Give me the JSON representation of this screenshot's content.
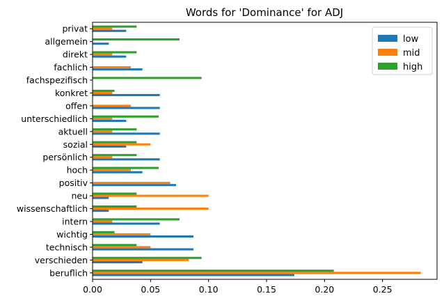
{
  "chart_data": {
    "type": "bar",
    "orientation": "horizontal",
    "title": "Words for 'Dominance' for ADJ",
    "xlabel": "",
    "ylabel": "",
    "xlim": [
      0,
      0.297
    ],
    "xticks": [
      "0.00",
      "0.05",
      "0.10",
      "0.15",
      "0.20",
      "0.25"
    ],
    "xtick_values": [
      0,
      0.05,
      0.1,
      0.15,
      0.2,
      0.25
    ],
    "legend_position": "top-right",
    "grid": false,
    "categories": [
      "beruflich",
      "verschieden",
      "technisch",
      "wichtig",
      "intern",
      "wissenschaftlich",
      "neu",
      "positiv",
      "hoch",
      "persönlich",
      "sozial",
      "aktuell",
      "unterschiedlich",
      "offen",
      "konkret",
      "fachspezifisch",
      "fachlich",
      "direkt",
      "allgemein",
      "privat"
    ],
    "series": [
      {
        "name": "low",
        "color": "#1f77b4",
        "values": [
          0.174,
          0.043,
          0.087,
          0.087,
          0.058,
          0.014,
          0.014,
          0.072,
          0.043,
          0.058,
          0.029,
          0.058,
          0.029,
          0.058,
          0.058,
          0.0,
          0.043,
          0.029,
          0.014,
          0.029
        ]
      },
      {
        "name": "mid",
        "color": "#ff7f0e",
        "values": [
          0.283,
          0.083,
          0.05,
          0.05,
          0.017,
          0.1,
          0.1,
          0.067,
          0.033,
          0.017,
          0.05,
          0.017,
          0.017,
          0.033,
          0.017,
          0.0,
          0.033,
          0.017,
          0.0,
          0.017
        ]
      },
      {
        "name": "high",
        "color": "#2ca02c",
        "values": [
          0.208,
          0.094,
          0.038,
          0.019,
          0.075,
          0.038,
          0.038,
          0.0,
          0.057,
          0.038,
          0.038,
          0.038,
          0.057,
          0.0,
          0.019,
          0.094,
          0.0,
          0.038,
          0.075,
          0.038
        ]
      }
    ]
  }
}
